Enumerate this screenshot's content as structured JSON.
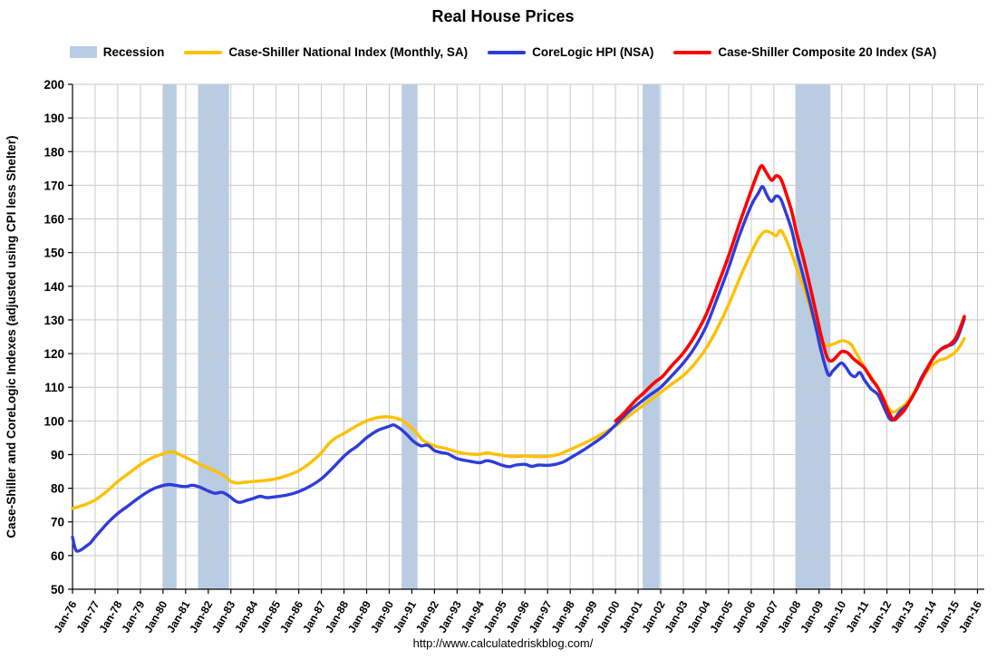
{
  "title": "Real House Prices",
  "footer": "http://www.calculatedriskblog.com/",
  "legend": [
    {
      "id": "recession",
      "label": "Recession",
      "color": "#b8cce4",
      "type": "band"
    },
    {
      "id": "cs-national",
      "label": "Case-Shiller National Index (Monthly, SA)",
      "color": "#FFC000",
      "type": "line"
    },
    {
      "id": "corelogic",
      "label": "CoreLogic HPI (NSA)",
      "color": "#2E3CD9",
      "type": "line"
    },
    {
      "id": "cs-composite20",
      "label": "Case-Shiller Composite 20 Index (SA)",
      "color": "#FF0000",
      "type": "line"
    }
  ],
  "chart_data": {
    "type": "line",
    "title": "Real House Prices",
    "xlabel": "",
    "ylabel": "Case-Shiller and CoreLogic Indexes (adjusted using CPI less Shelter)",
    "ylim": [
      50,
      200
    ],
    "ytick_step": 10,
    "xlim": [
      1976,
      2016.3
    ],
    "grid": true,
    "legend_position": "top",
    "band_color": "#b8cce4",
    "grid_color": "#c9c9c9",
    "xticks": [
      "Jan-76",
      "Jan-77",
      "Jan-78",
      "Jan-79",
      "Jan-80",
      "Jan-81",
      "Jan-82",
      "Jan-83",
      "Jan-84",
      "Jan-85",
      "Jan-86",
      "Jan-87",
      "Jan-88",
      "Jan-89",
      "Jan-90",
      "Jan-91",
      "Jan-92",
      "Jan-93",
      "Jan-94",
      "Jan-95",
      "Jan-96",
      "Jan-97",
      "Jan-98",
      "Jan-99",
      "Jan-00",
      "Jan-01",
      "Jan-02",
      "Jan-03",
      "Jan-04",
      "Jan-05",
      "Jan-06",
      "Jan-07",
      "Jan-08",
      "Jan-09",
      "Jan-10",
      "Jan-11",
      "Jan-12",
      "Jan-13",
      "Jan-14",
      "Jan-15",
      "Jan-16"
    ],
    "recession_bands": [
      [
        1980.0,
        1980.6
      ],
      [
        1981.55,
        1982.92
      ],
      [
        1990.55,
        1991.25
      ],
      [
        2001.2,
        2001.95
      ],
      [
        2007.95,
        2009.5
      ]
    ],
    "series": [
      {
        "name": "Case-Shiller National Index (Monthly, SA)",
        "color": "#FFC000",
        "width": 3.4,
        "points": [
          [
            1976.0,
            74
          ],
          [
            1976.5,
            75
          ],
          [
            1977.0,
            76.5
          ],
          [
            1977.5,
            79
          ],
          [
            1978.0,
            82
          ],
          [
            1978.5,
            84.5
          ],
          [
            1979.0,
            87
          ],
          [
            1979.5,
            89
          ],
          [
            1980.0,
            90.2
          ],
          [
            1980.4,
            90.8
          ],
          [
            1980.8,
            89.8
          ],
          [
            1981.2,
            88.5
          ],
          [
            1981.6,
            87.2
          ],
          [
            1982.0,
            86
          ],
          [
            1982.4,
            84.8
          ],
          [
            1982.8,
            83.2
          ],
          [
            1983.0,
            82
          ],
          [
            1983.3,
            81.5
          ],
          [
            1983.6,
            81.8
          ],
          [
            1984.0,
            82
          ],
          [
            1984.5,
            82.3
          ],
          [
            1985.0,
            82.8
          ],
          [
            1985.5,
            83.8
          ],
          [
            1986.0,
            85.2
          ],
          [
            1986.5,
            87.5
          ],
          [
            1987.0,
            90.5
          ],
          [
            1987.3,
            93
          ],
          [
            1987.6,
            94.8
          ],
          [
            1988.0,
            96.3
          ],
          [
            1988.5,
            98.3
          ],
          [
            1989.0,
            100
          ],
          [
            1989.5,
            101
          ],
          [
            1990.0,
            101.2
          ],
          [
            1990.5,
            100.4
          ],
          [
            1990.8,
            99
          ],
          [
            1991.2,
            96.5
          ],
          [
            1991.5,
            94.2
          ],
          [
            1992.0,
            92.6
          ],
          [
            1992.5,
            91.8
          ],
          [
            1993.0,
            90.8
          ],
          [
            1993.5,
            90.2
          ],
          [
            1994.0,
            90.1
          ],
          [
            1994.3,
            90.5
          ],
          [
            1994.6,
            90.2
          ],
          [
            1995.0,
            89.8
          ],
          [
            1995.5,
            89.4
          ],
          [
            1996.0,
            89.6
          ],
          [
            1996.5,
            89.4
          ],
          [
            1997.0,
            89.5
          ],
          [
            1997.5,
            90.1
          ],
          [
            1998.0,
            91.5
          ],
          [
            1998.5,
            93
          ],
          [
            1999.0,
            94.6
          ],
          [
            1999.5,
            96.5
          ],
          [
            2000.0,
            98.5
          ],
          [
            2000.5,
            101
          ],
          [
            2001.0,
            103.5
          ],
          [
            2001.5,
            106
          ],
          [
            2002.0,
            108.5
          ],
          [
            2002.5,
            111
          ],
          [
            2003.0,
            113.5
          ],
          [
            2003.5,
            117
          ],
          [
            2004.0,
            121.5
          ],
          [
            2004.5,
            127.5
          ],
          [
            2005.0,
            134.5
          ],
          [
            2005.5,
            142.5
          ],
          [
            2006.0,
            150
          ],
          [
            2006.3,
            154
          ],
          [
            2006.6,
            156.3
          ],
          [
            2006.9,
            155.8
          ],
          [
            2007.1,
            155
          ],
          [
            2007.3,
            156.6
          ],
          [
            2007.5,
            154.5
          ],
          [
            2007.8,
            149.5
          ],
          [
            2008.0,
            145.5
          ],
          [
            2008.4,
            138
          ],
          [
            2008.8,
            129
          ],
          [
            2009.0,
            125.5
          ],
          [
            2009.3,
            122.5
          ],
          [
            2009.6,
            122.8
          ],
          [
            2009.9,
            123.6
          ],
          [
            2010.1,
            123.8
          ],
          [
            2010.4,
            122.8
          ],
          [
            2010.7,
            119.5
          ],
          [
            2011.0,
            116
          ],
          [
            2011.3,
            113
          ],
          [
            2011.6,
            110
          ],
          [
            2011.9,
            106
          ],
          [
            2012.1,
            103.5
          ],
          [
            2012.3,
            102.6
          ],
          [
            2012.6,
            103.8
          ],
          [
            2012.9,
            105.5
          ],
          [
            2013.2,
            108.5
          ],
          [
            2013.5,
            112
          ],
          [
            2013.8,
            115
          ],
          [
            2014.0,
            116.5
          ],
          [
            2014.3,
            118
          ],
          [
            2014.6,
            118.6
          ],
          [
            2014.9,
            119.8
          ],
          [
            2015.1,
            121
          ],
          [
            2015.3,
            123
          ],
          [
            2015.42,
            124.5
          ]
        ]
      },
      {
        "name": "CoreLogic HPI (NSA)",
        "color": "#2E3CD9",
        "width": 3.4,
        "points": [
          [
            1976.0,
            65.5
          ],
          [
            1976.1,
            62.5
          ],
          [
            1976.2,
            61.3
          ],
          [
            1976.4,
            61.8
          ],
          [
            1976.6,
            62.8
          ],
          [
            1976.8,
            63.8
          ],
          [
            1977.0,
            65.5
          ],
          [
            1977.3,
            67.8
          ],
          [
            1977.6,
            70
          ],
          [
            1978.0,
            72.5
          ],
          [
            1978.5,
            75
          ],
          [
            1979.0,
            77.5
          ],
          [
            1979.5,
            79.6
          ],
          [
            1980.0,
            80.8
          ],
          [
            1980.3,
            81.1
          ],
          [
            1980.6,
            80.8
          ],
          [
            1981.0,
            80.5
          ],
          [
            1981.3,
            80.9
          ],
          [
            1981.6,
            80.4
          ],
          [
            1982.0,
            79.2
          ],
          [
            1982.3,
            78.5
          ],
          [
            1982.6,
            78.8
          ],
          [
            1982.9,
            77.8
          ],
          [
            1983.2,
            76.2
          ],
          [
            1983.4,
            75.8
          ],
          [
            1983.7,
            76.4
          ],
          [
            1984.0,
            77
          ],
          [
            1984.3,
            77.6
          ],
          [
            1984.6,
            77.2
          ],
          [
            1985.0,
            77.5
          ],
          [
            1985.5,
            78
          ],
          [
            1986.0,
            79
          ],
          [
            1986.5,
            80.6
          ],
          [
            1987.0,
            82.8
          ],
          [
            1987.5,
            86
          ],
          [
            1988.0,
            89.5
          ],
          [
            1988.3,
            91.2
          ],
          [
            1988.6,
            92.6
          ],
          [
            1989.0,
            95
          ],
          [
            1989.5,
            97.2
          ],
          [
            1990.0,
            98.4
          ],
          [
            1990.2,
            98.8
          ],
          [
            1990.5,
            97.6
          ],
          [
            1990.8,
            95.8
          ],
          [
            1991.1,
            93.8
          ],
          [
            1991.4,
            92.6
          ],
          [
            1991.7,
            92.8
          ],
          [
            1992.0,
            91.2
          ],
          [
            1992.3,
            90.6
          ],
          [
            1992.6,
            90.2
          ],
          [
            1993.0,
            88.8
          ],
          [
            1993.5,
            88.1
          ],
          [
            1994.0,
            87.6
          ],
          [
            1994.3,
            88.2
          ],
          [
            1994.6,
            87.8
          ],
          [
            1995.0,
            86.8
          ],
          [
            1995.3,
            86.4
          ],
          [
            1995.6,
            86.9
          ],
          [
            1996.0,
            87.1
          ],
          [
            1996.3,
            86.5
          ],
          [
            1996.6,
            86.9
          ],
          [
            1997.0,
            86.8
          ],
          [
            1997.4,
            87.2
          ],
          [
            1997.7,
            87.8
          ],
          [
            1998.0,
            89
          ],
          [
            1998.5,
            91
          ],
          [
            1999.0,
            93.2
          ],
          [
            1999.5,
            95.6
          ],
          [
            2000.0,
            98.8
          ],
          [
            2000.5,
            102.2
          ],
          [
            2001.0,
            105
          ],
          [
            2001.5,
            107.6
          ],
          [
            2002.0,
            110
          ],
          [
            2002.5,
            113.5
          ],
          [
            2003.0,
            117.2
          ],
          [
            2003.5,
            121.8
          ],
          [
            2004.0,
            128
          ],
          [
            2004.5,
            136.5
          ],
          [
            2005.0,
            145.5
          ],
          [
            2005.5,
            155.5
          ],
          [
            2006.0,
            164
          ],
          [
            2006.3,
            167.5
          ],
          [
            2006.5,
            169.6
          ],
          [
            2006.7,
            167
          ],
          [
            2006.9,
            165.2
          ],
          [
            2007.1,
            166.8
          ],
          [
            2007.3,
            166
          ],
          [
            2007.5,
            162.5
          ],
          [
            2007.8,
            156.5
          ],
          [
            2008.0,
            150.5
          ],
          [
            2008.3,
            143
          ],
          [
            2008.6,
            135
          ],
          [
            2008.9,
            126.5
          ],
          [
            2009.1,
            120.5
          ],
          [
            2009.4,
            113.8
          ],
          [
            2009.6,
            114.8
          ],
          [
            2009.8,
            116.2
          ],
          [
            2010.0,
            117.2
          ],
          [
            2010.2,
            115.8
          ],
          [
            2010.4,
            113.8
          ],
          [
            2010.6,
            113.2
          ],
          [
            2010.8,
            114.4
          ],
          [
            2011.0,
            112.2
          ],
          [
            2011.3,
            109.5
          ],
          [
            2011.6,
            107.8
          ],
          [
            2011.9,
            103.5
          ],
          [
            2012.1,
            100.8
          ],
          [
            2012.25,
            100.2
          ],
          [
            2012.4,
            101.2
          ],
          [
            2012.6,
            103
          ],
          [
            2012.9,
            104.8
          ],
          [
            2013.2,
            108
          ],
          [
            2013.5,
            112.5
          ],
          [
            2013.8,
            116
          ],
          [
            2014.0,
            118.2
          ],
          [
            2014.3,
            120.8
          ],
          [
            2014.6,
            122.2
          ],
          [
            2014.9,
            122.8
          ],
          [
            2015.1,
            124.5
          ],
          [
            2015.25,
            127
          ],
          [
            2015.42,
            130.3
          ]
        ]
      },
      {
        "name": "Case-Shiller Composite 20 Index (SA)",
        "color": "#FF0000",
        "width": 3.6,
        "points": [
          [
            2000.0,
            100
          ],
          [
            2000.3,
            101.8
          ],
          [
            2000.6,
            104
          ],
          [
            2000.9,
            106.2
          ],
          [
            2001.2,
            108
          ],
          [
            2001.5,
            110
          ],
          [
            2001.8,
            111.8
          ],
          [
            2002.1,
            113.3
          ],
          [
            2002.5,
            116.5
          ],
          [
            2003.0,
            120.2
          ],
          [
            2003.5,
            125.2
          ],
          [
            2004.0,
            131.5
          ],
          [
            2004.5,
            140
          ],
          [
            2005.0,
            149
          ],
          [
            2005.5,
            159
          ],
          [
            2006.0,
            168.5
          ],
          [
            2006.25,
            173
          ],
          [
            2006.45,
            175.8
          ],
          [
            2006.65,
            174
          ],
          [
            2006.9,
            171.5
          ],
          [
            2007.1,
            172.8
          ],
          [
            2007.3,
            172
          ],
          [
            2007.5,
            168.5
          ],
          [
            2007.8,
            162
          ],
          [
            2008.0,
            156
          ],
          [
            2008.3,
            148.5
          ],
          [
            2008.6,
            140
          ],
          [
            2008.9,
            131
          ],
          [
            2009.1,
            125
          ],
          [
            2009.35,
            119
          ],
          [
            2009.55,
            117.8
          ],
          [
            2009.8,
            119.3
          ],
          [
            2010.0,
            120.6
          ],
          [
            2010.25,
            120.3
          ],
          [
            2010.5,
            118.6
          ],
          [
            2010.75,
            117.2
          ],
          [
            2011.0,
            115.8
          ],
          [
            2011.3,
            112.6
          ],
          [
            2011.6,
            109.8
          ],
          [
            2011.9,
            105.5
          ],
          [
            2012.1,
            102.3
          ],
          [
            2012.3,
            100.3
          ],
          [
            2012.5,
            101.3
          ],
          [
            2012.75,
            103
          ],
          [
            2013.0,
            105.8
          ],
          [
            2013.3,
            109.3
          ],
          [
            2013.6,
            113.3
          ],
          [
            2013.9,
            117
          ],
          [
            2014.1,
            119.3
          ],
          [
            2014.4,
            121.3
          ],
          [
            2014.7,
            122.3
          ],
          [
            2015.0,
            124.2
          ],
          [
            2015.2,
            127
          ],
          [
            2015.42,
            131
          ]
        ]
      }
    ]
  }
}
